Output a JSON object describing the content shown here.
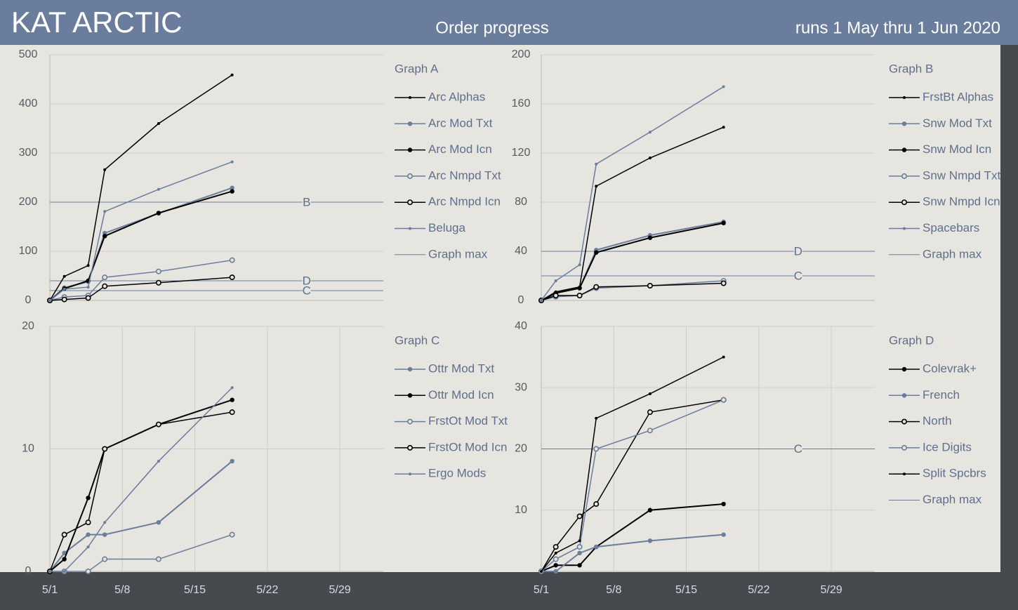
{
  "header": {
    "brand": "KAT ARCTIC",
    "title": "Order progress",
    "subtitle": "runs 1 May thru 1 Jun 2020"
  },
  "chart_data": [
    {
      "type": "line",
      "title": "Graph A",
      "x": [
        0,
        1.4,
        3.7,
        5.3,
        10.5,
        17.6
      ],
      "xlim": [
        0,
        32.2
      ],
      "ylim": [
        0,
        500
      ],
      "yticks": [
        0,
        100,
        200,
        300,
        400,
        500
      ],
      "grid": true,
      "series": [
        {
          "name": "Arc Alphas",
          "color": "#000000",
          "marker": "small",
          "values": [
            0,
            49,
            71,
            266,
            360,
            459
          ]
        },
        {
          "name": "Arc Mod Txt",
          "color": "#6b7d9c",
          "marker": "filled",
          "values": [
            0,
            26,
            38,
            137,
            177,
            229
          ]
        },
        {
          "name": "Arc Mod Icn",
          "color": "#000000",
          "marker": "filled",
          "values": [
            0,
            24,
            40,
            131,
            178,
            222
          ]
        },
        {
          "name": "Arc Nmpd Txt",
          "color": "#6b7d9c",
          "marker": "hollow",
          "values": [
            0,
            7,
            10,
            47,
            59,
            82
          ]
        },
        {
          "name": "Arc Nmpd Icn",
          "color": "#000000",
          "marker": "hollow",
          "values": [
            0,
            2,
            5,
            29,
            36,
            47
          ]
        },
        {
          "name": "Beluga",
          "color": "#6b7d9c",
          "marker": "small",
          "values": [
            0,
            23,
            27,
            181,
            226,
            282
          ]
        }
      ],
      "reference_name": "Graph max",
      "reference_color": "#6b7d9c",
      "reference_lines": [
        {
          "label": "B",
          "value": 200
        },
        {
          "label": "D",
          "value": 40
        },
        {
          "label": "C",
          "value": 20
        }
      ]
    },
    {
      "type": "line",
      "title": "Graph B",
      "x": [
        0,
        1.4,
        3.7,
        5.3,
        10.5,
        17.6
      ],
      "xlim": [
        0,
        32.2
      ],
      "ylim": [
        0,
        200
      ],
      "yticks": [
        0,
        40,
        80,
        120,
        160,
        200
      ],
      "grid": true,
      "series": [
        {
          "name": "FrstBt Alphas",
          "color": "#000000",
          "marker": "small",
          "values": [
            0,
            7,
            11,
            93,
            116,
            141
          ]
        },
        {
          "name": "Snw Mod Txt",
          "color": "#6b7d9c",
          "marker": "filled",
          "values": [
            0,
            6,
            10,
            41,
            53,
            64
          ]
        },
        {
          "name": "Snw Mod Icn",
          "color": "#000000",
          "marker": "filled",
          "values": [
            0,
            6,
            10,
            39,
            51,
            63
          ]
        },
        {
          "name": "Snw Nmpd Txt",
          "color": "#6b7d9c",
          "marker": "hollow",
          "values": [
            0,
            3,
            4,
            10,
            12,
            16
          ]
        },
        {
          "name": "Snw Nmpd Icn",
          "color": "#000000",
          "marker": "hollow",
          "values": [
            0,
            4,
            4,
            11,
            12,
            14
          ]
        },
        {
          "name": "Spacebars",
          "color": "#6b7d9c",
          "marker": "small",
          "values": [
            0,
            16,
            29,
            111,
            137,
            174
          ]
        }
      ],
      "reference_name": "Graph max",
      "reference_color": "#6b7d9c",
      "reference_lines": [
        {
          "label": "D",
          "value": 40
        },
        {
          "label": "C",
          "value": 20
        }
      ]
    },
    {
      "type": "line",
      "title": "Graph C",
      "x": [
        0,
        1.4,
        3.7,
        5.3,
        10.5,
        17.6
      ],
      "xlim": [
        0,
        32.2
      ],
      "xticks": [
        {
          "value": 0,
          "label": "5/1"
        },
        {
          "value": 7,
          "label": "5/8"
        },
        {
          "value": 14,
          "label": "5/15"
        },
        {
          "value": 21,
          "label": "5/22"
        },
        {
          "value": 28,
          "label": "5/29"
        }
      ],
      "ylim": [
        0,
        20
      ],
      "yticks": [
        0,
        10,
        20
      ],
      "grid": true,
      "series": [
        {
          "name": "Ottr Mod Txt",
          "color": "#6b7d9c",
          "marker": "filled",
          "values": [
            0,
            1.5,
            3,
            3,
            4,
            9
          ]
        },
        {
          "name": "Ottr Mod Icn",
          "color": "#000000",
          "marker": "filled",
          "values": [
            0,
            1,
            6,
            10,
            12,
            14
          ]
        },
        {
          "name": "FrstOt Mod Txt",
          "color": "#6b7d9c",
          "marker": "hollow",
          "values": [
            0,
            0,
            0,
            1,
            1,
            3
          ]
        },
        {
          "name": "FrstOt Mod Icn",
          "color": "#000000",
          "marker": "hollow",
          "values": [
            0,
            3,
            4,
            10,
            12,
            13
          ]
        },
        {
          "name": "Ergo Mods",
          "color": "#6b7d9c",
          "marker": "small",
          "values": [
            0,
            0,
            2,
            4,
            9,
            15
          ]
        }
      ]
    },
    {
      "type": "line",
      "title": "Graph D",
      "x": [
        0,
        1.4,
        3.7,
        5.3,
        10.5,
        17.6
      ],
      "xlim": [
        0,
        32.2
      ],
      "xticks": [
        {
          "value": 0,
          "label": "5/1"
        },
        {
          "value": 7,
          "label": "5/8"
        },
        {
          "value": 14,
          "label": "5/15"
        },
        {
          "value": 21,
          "label": "5/22"
        },
        {
          "value": 28,
          "label": "5/29"
        }
      ],
      "ylim": [
        0,
        40
      ],
      "yticks": [
        10,
        20,
        30,
        40
      ],
      "grid": true,
      "series": [
        {
          "name": "Colevrak+",
          "color": "#000000",
          "marker": "filled",
          "values": [
            0,
            1,
            1,
            4,
            10,
            11
          ]
        },
        {
          "name": "French",
          "color": "#6b7d9c",
          "marker": "filled",
          "values": [
            0,
            0,
            3,
            4,
            5,
            6
          ]
        },
        {
          "name": "North",
          "color": "#000000",
          "marker": "hollow",
          "values": [
            0,
            4,
            9,
            11,
            26,
            28
          ]
        },
        {
          "name": "Ice Digits",
          "color": "#6b7d9c",
          "marker": "hollow",
          "values": [
            0,
            2,
            4,
            20,
            23,
            28
          ]
        },
        {
          "name": "Split Spcbrs",
          "color": "#000000",
          "marker": "small",
          "values": [
            0,
            3,
            5,
            25,
            29,
            35
          ]
        }
      ],
      "reference_name": "Graph max",
      "reference_color": "#6b7d9c",
      "reference_lines": [
        {
          "label": "C",
          "value": 20
        }
      ]
    }
  ]
}
